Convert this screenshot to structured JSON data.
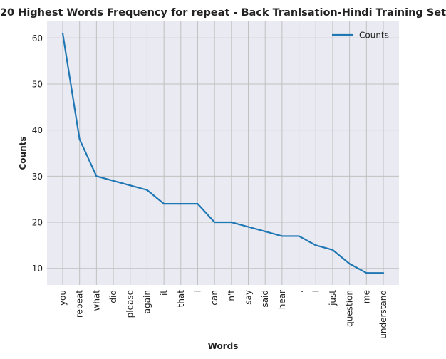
{
  "chart_data": {
    "type": "line",
    "title": "20 Highest Words Frequency for repeat - Back Tranlsation-Hindi Training Set",
    "xlabel": "Words",
    "ylabel": "Counts",
    "categories": [
      "you",
      "repeat",
      "what",
      "did",
      "please",
      "again",
      "it",
      "that",
      "i",
      "can",
      "n't",
      "say",
      "said",
      "hear",
      ",",
      "I",
      "just",
      "question",
      "me",
      "understand"
    ],
    "series": [
      {
        "name": "Counts",
        "values": [
          61,
          38,
          30,
          29,
          28,
          27,
          24,
          24,
          24,
          20,
          20,
          19,
          18,
          17,
          17,
          15,
          14,
          11,
          9,
          9
        ]
      }
    ],
    "ylim": [
      6.4,
      63.6
    ],
    "yticks": [
      10,
      20,
      30,
      40,
      50,
      60
    ],
    "grid": true,
    "legend_position": "top-right",
    "colors": {
      "line": "#1f77b4",
      "plot_background": "#eaeaf2",
      "grid": "#c0c0c0"
    }
  }
}
